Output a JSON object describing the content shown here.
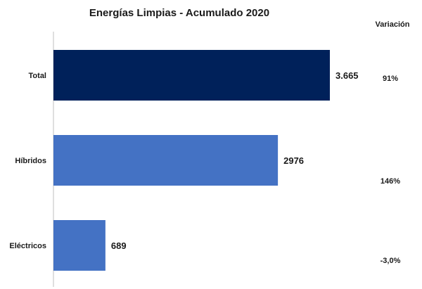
{
  "chart_data": {
    "type": "bar",
    "orientation": "horizontal",
    "title": "Energías  Limpias - Acumulado 2020",
    "categories": [
      "Total",
      "Híbridos",
      "Eléctricos"
    ],
    "values": [
      3665,
      2976,
      689
    ],
    "data_labels": [
      "3.665",
      "2976",
      "689"
    ],
    "colors": [
      "#00215a",
      "#4472c4",
      "#4472c4"
    ],
    "xlim": [
      0,
      3665
    ],
    "grid": false,
    "variacion": {
      "header": "Variación",
      "values": [
        "91%",
        "146%",
        "-3,0%"
      ]
    }
  }
}
